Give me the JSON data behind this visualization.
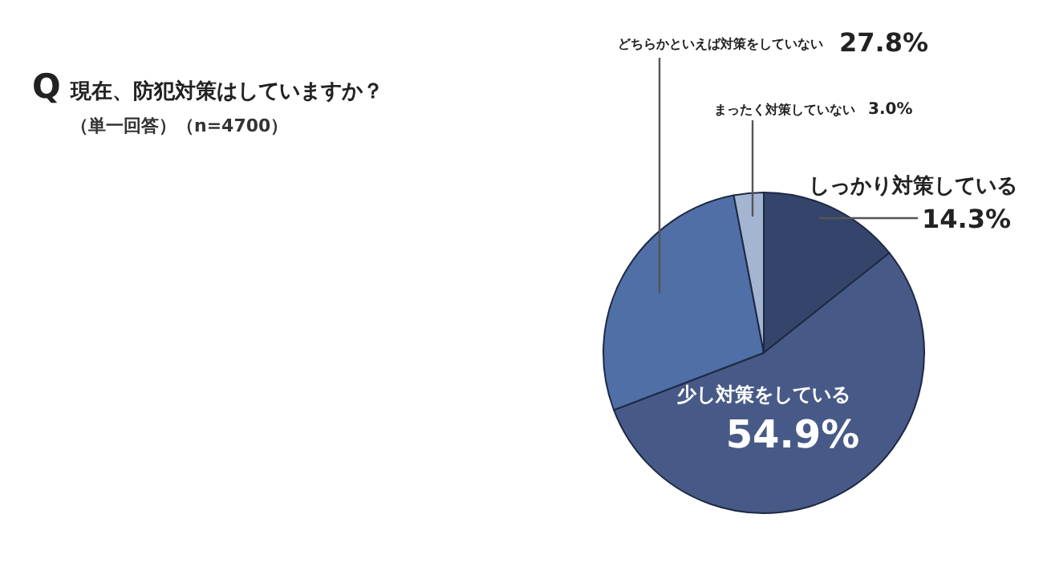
{
  "chart_data": {
    "type": "pie",
    "title": "Q 現在、防犯対策はしていますか？",
    "subtitle": "（単一回答）（n=4700）",
    "categories": [
      "しっかり対策している",
      "少し対策をしている",
      "どちらかといえば対策をしていない",
      "まったく対策していない"
    ],
    "values": [
      14.3,
      54.9,
      27.8,
      3.0
    ],
    "colors": [
      "#34446a",
      "#475a87",
      "#4f6fa6",
      "#a4b5d2"
    ],
    "value_labels": [
      "14.3%",
      "54.9%",
      "27.8%",
      "3.0%"
    ],
    "legend": false
  }
}
